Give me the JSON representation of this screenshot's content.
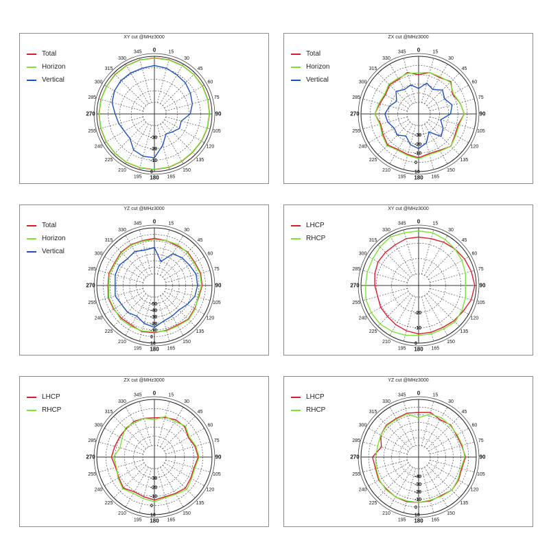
{
  "colors": {
    "total": "#d81b2a",
    "horizon": "#7ee03a",
    "vertical": "#1d4fb8",
    "lhcp": "#d81b2a",
    "rhcp": "#7ee03a"
  },
  "chart_data": [
    {
      "type": "polar",
      "title": "XY cut @MHz3000",
      "radial_range": [
        -40,
        0
      ],
      "radial_ticks": [
        "-30",
        "-20",
        "-10",
        "0"
      ],
      "angle_labels": [
        "0",
        "15",
        "30",
        "45",
        "60",
        "75",
        "90",
        "105",
        "120",
        "135",
        "150",
        "165",
        "180",
        "195",
        "210",
        "225",
        "240",
        "255",
        "270",
        "285",
        "300",
        "315",
        "330",
        "345"
      ],
      "bold_angles": [
        "0",
        "90",
        "180",
        "270"
      ],
      "legend": {
        "position": "top-left",
        "entries": [
          "Total",
          "Horizon",
          "Vertical"
        ]
      },
      "series": [
        {
          "name": "Total",
          "color_key": "total",
          "values": [
            -1.5,
            -1.4,
            -1.5,
            -1.6,
            -1.8,
            -2.0,
            -2.2,
            -2.5,
            -2.8,
            -3.0,
            -2.5,
            -2.0,
            -1.8,
            -1.6,
            -1.5,
            -1.6,
            -1.7,
            -1.8,
            -1.9,
            -2.0,
            -2.0,
            -1.8,
            -1.6,
            -1.5
          ]
        },
        {
          "name": "Horizon",
          "color_key": "horizon",
          "values": [
            -1.7,
            -1.6,
            -1.7,
            -1.8,
            -2.0,
            -2.2,
            -2.4,
            -2.7,
            -3.0,
            -3.3,
            -2.8,
            -2.2,
            -2.0,
            -1.8,
            -1.7,
            -1.8,
            -1.9,
            -2.0,
            -2.1,
            -2.2,
            -2.2,
            -2.0,
            -1.8,
            -1.7
          ]
        },
        {
          "name": "Vertical",
          "color_key": "vertical",
          "values": [
            -8,
            -9,
            -11,
            -12,
            -14,
            -16,
            -19,
            -26,
            -25,
            -28,
            -30,
            -22,
            -12,
            -12,
            -14,
            -20,
            -20,
            -18,
            -16,
            -12,
            -10,
            -9,
            -9,
            -9
          ]
        }
      ]
    },
    {
      "type": "polar",
      "title": "ZX cut @MHz3000",
      "radial_range": [
        -40,
        10
      ],
      "radial_ticks": [
        "-30",
        "-20",
        "-10",
        "0",
        "10"
      ],
      "angle_labels": [
        "0",
        "15",
        "30",
        "45",
        "60",
        "75",
        "90",
        "105",
        "120",
        "135",
        "150",
        "165",
        "180",
        "195",
        "210",
        "225",
        "240",
        "255",
        "270",
        "285",
        "300",
        "315",
        "330",
        "345"
      ],
      "bold_angles": [
        "0",
        "90",
        "180",
        "270"
      ],
      "legend": {
        "position": "top-left",
        "entries": [
          "Total",
          "Horizon",
          "Vertical"
        ]
      },
      "series": [
        {
          "name": "Total",
          "color_key": "total",
          "values": [
            -10,
            -6,
            -7,
            -3,
            -10,
            -6,
            -3,
            -8,
            -7,
            -3,
            -7,
            -8,
            -5,
            -7,
            -8,
            -5,
            -8,
            -10,
            -5,
            -9,
            -11,
            -8,
            -9,
            -6
          ]
        },
        {
          "name": "Horizon",
          "color_key": "horizon",
          "values": [
            -8,
            -6,
            -6,
            -4,
            -9,
            -6,
            -3,
            -7,
            -6,
            -3,
            -6,
            -7,
            -4,
            -6,
            -7,
            -4,
            -7,
            -9,
            -5,
            -8,
            -10,
            -7,
            -8,
            -7
          ]
        },
        {
          "name": "Vertical",
          "color_key": "vertical",
          "values": [
            -25,
            -18,
            -22,
            -16,
            -20,
            -15,
            -18,
            -28,
            -22,
            -18,
            -30,
            -20,
            -15,
            -18,
            -25,
            -20,
            -22,
            -18,
            -16,
            -20,
            -25,
            -18,
            -22,
            -20
          ]
        }
      ]
    },
    {
      "type": "polar",
      "title": "YZ cut @MHz3000",
      "radial_range": [
        -60,
        10
      ],
      "radial_ticks": [
        "-50",
        "-40",
        "-30",
        "-20",
        "-10",
        "0",
        "10"
      ],
      "angle_labels": [
        "0",
        "15",
        "30",
        "45",
        "60",
        "75",
        "90",
        "105",
        "120",
        "135",
        "150",
        "165",
        "180",
        "195",
        "210",
        "225",
        "240",
        "255",
        "270",
        "285",
        "300",
        "315",
        "330",
        "345"
      ],
      "bold_angles": [
        "0",
        "90",
        "180",
        "270"
      ],
      "legend": {
        "position": "top-left",
        "entries": [
          "Total",
          "Horizon",
          "Vertical"
        ]
      },
      "series": [
        {
          "name": "Total",
          "color_key": "total",
          "values": [
            -6,
            -7,
            -8,
            -6,
            -7,
            -5,
            -5,
            -8,
            -7,
            -5,
            -8,
            -7,
            -6,
            -5,
            -8,
            -7,
            -6,
            -5,
            -7,
            -6,
            -8,
            -6,
            -6,
            -7
          ]
        },
        {
          "name": "Horizon",
          "color_key": "horizon",
          "values": [
            -8,
            -7,
            -6,
            -7,
            -8,
            -6,
            -6,
            -9,
            -6,
            -4,
            -7,
            -6,
            -7,
            -6,
            -6,
            -5,
            -7,
            -6,
            -8,
            -7,
            -9,
            -7,
            -7,
            -8
          ]
        },
        {
          "name": "Vertical",
          "color_key": "vertical",
          "values": [
            -20,
            -40,
            -22,
            -18,
            -16,
            -12,
            -12,
            -14,
            -20,
            -25,
            -24,
            -22,
            -14,
            -18,
            -24,
            -20,
            -20,
            -16,
            -18,
            -16,
            -16,
            -20,
            -18,
            -22
          ]
        }
      ]
    },
    {
      "type": "polar",
      "title": "XY cut @MHz3000",
      "radial_range": [
        -30,
        0
      ],
      "radial_ticks": [
        "-20",
        "-10",
        "0"
      ],
      "angle_labels": [
        "0",
        "15",
        "30",
        "45",
        "60",
        "75",
        "90",
        "105",
        "120",
        "135",
        "150",
        "165",
        "180",
        "195",
        "210",
        "225",
        "240",
        "255",
        "270",
        "285",
        "300",
        "315",
        "330",
        "345"
      ],
      "bold_angles": [
        "0",
        "90",
        "180",
        "270"
      ],
      "legend": {
        "position": "top-left",
        "entries": [
          "LHCP",
          "RHCP"
        ]
      },
      "series": [
        {
          "name": "LHCP",
          "color_key": "lhcp",
          "values": [
            -6,
            -6,
            -5,
            -4,
            -3,
            -2,
            -1,
            -2,
            -4,
            -5,
            -6,
            -6,
            -6,
            -7,
            -8,
            -9,
            -9,
            -10,
            -9,
            -8,
            -7,
            -7,
            -7,
            -6
          ]
        },
        {
          "name": "RHCP",
          "color_key": "rhcp",
          "values": [
            -2,
            -2,
            -3,
            -4,
            -5,
            -6,
            -7,
            -6,
            -5,
            -4,
            -5,
            -5,
            -5,
            -4,
            -3,
            -2,
            -2,
            -2,
            -3,
            -3,
            -3,
            -2,
            -1,
            -2
          ]
        }
      ]
    },
    {
      "type": "polar",
      "title": "ZX cut @MHz3000",
      "radial_range": [
        -40,
        10
      ],
      "radial_ticks": [
        "-30",
        "-20",
        "-10",
        "0",
        "10"
      ],
      "angle_labels": [
        "0",
        "15",
        "30",
        "45",
        "60",
        "75",
        "90",
        "105",
        "120",
        "135",
        "150",
        "165",
        "180",
        "195",
        "210",
        "225",
        "240",
        "255",
        "270",
        "285",
        "300",
        "315",
        "330",
        "345"
      ],
      "bold_angles": [
        "0",
        "90",
        "180",
        "270"
      ],
      "legend": {
        "position": "top-left",
        "entries": [
          "LHCP",
          "RHCP"
        ]
      },
      "series": [
        {
          "name": "LHCP",
          "color_key": "lhcp",
          "values": [
            -10,
            -8,
            -6,
            -6,
            -10,
            -7,
            -5,
            -8,
            -7,
            -5,
            -7,
            -8,
            -6,
            -8,
            -9,
            -5,
            -8,
            -9,
            -6,
            -8,
            -9,
            -9,
            -8,
            -9
          ]
        },
        {
          "name": "RHCP",
          "color_key": "rhcp",
          "values": [
            -12,
            -7,
            -8,
            -5,
            -9,
            -6,
            -4,
            -7,
            -6,
            -3,
            -6,
            -7,
            -4,
            -6,
            -7,
            -4,
            -7,
            -10,
            -8,
            -14,
            -12,
            -8,
            -9,
            -9
          ]
        }
      ]
    },
    {
      "type": "polar",
      "title": "YZ cut @MHz3000",
      "radial_range": [
        -50,
        10
      ],
      "radial_ticks": [
        "-40",
        "-30",
        "-20",
        "-10",
        "0",
        "10"
      ],
      "angle_labels": [
        "0",
        "15",
        "30",
        "45",
        "60",
        "75",
        "90",
        "105",
        "120",
        "135",
        "150",
        "165",
        "180",
        "195",
        "210",
        "225",
        "240",
        "255",
        "270",
        "285",
        "300",
        "315",
        "330",
        "345"
      ],
      "bold_angles": [
        "0",
        "90",
        "180",
        "270"
      ],
      "legend": {
        "position": "top-left",
        "entries": [
          "LHCP",
          "RHCP"
        ]
      },
      "series": [
        {
          "name": "LHCP",
          "color_key": "lhcp",
          "values": [
            -7,
            -5,
            -9,
            -6,
            -8,
            -7,
            -4,
            -7,
            -5,
            -4,
            -7,
            -6,
            -6,
            -5,
            -5,
            -6,
            -5,
            -7,
            -5,
            -15,
            -8,
            -6,
            -7,
            -6
          ]
        },
        {
          "name": "RHCP",
          "color_key": "rhcp",
          "values": [
            -14,
            -7,
            -6,
            -7,
            -7,
            -6,
            -5,
            -8,
            -6,
            -4,
            -6,
            -7,
            -6,
            -6,
            -5,
            -5,
            -6,
            -8,
            -9,
            -10,
            -8,
            -7,
            -8,
            -7
          ]
        }
      ]
    }
  ]
}
